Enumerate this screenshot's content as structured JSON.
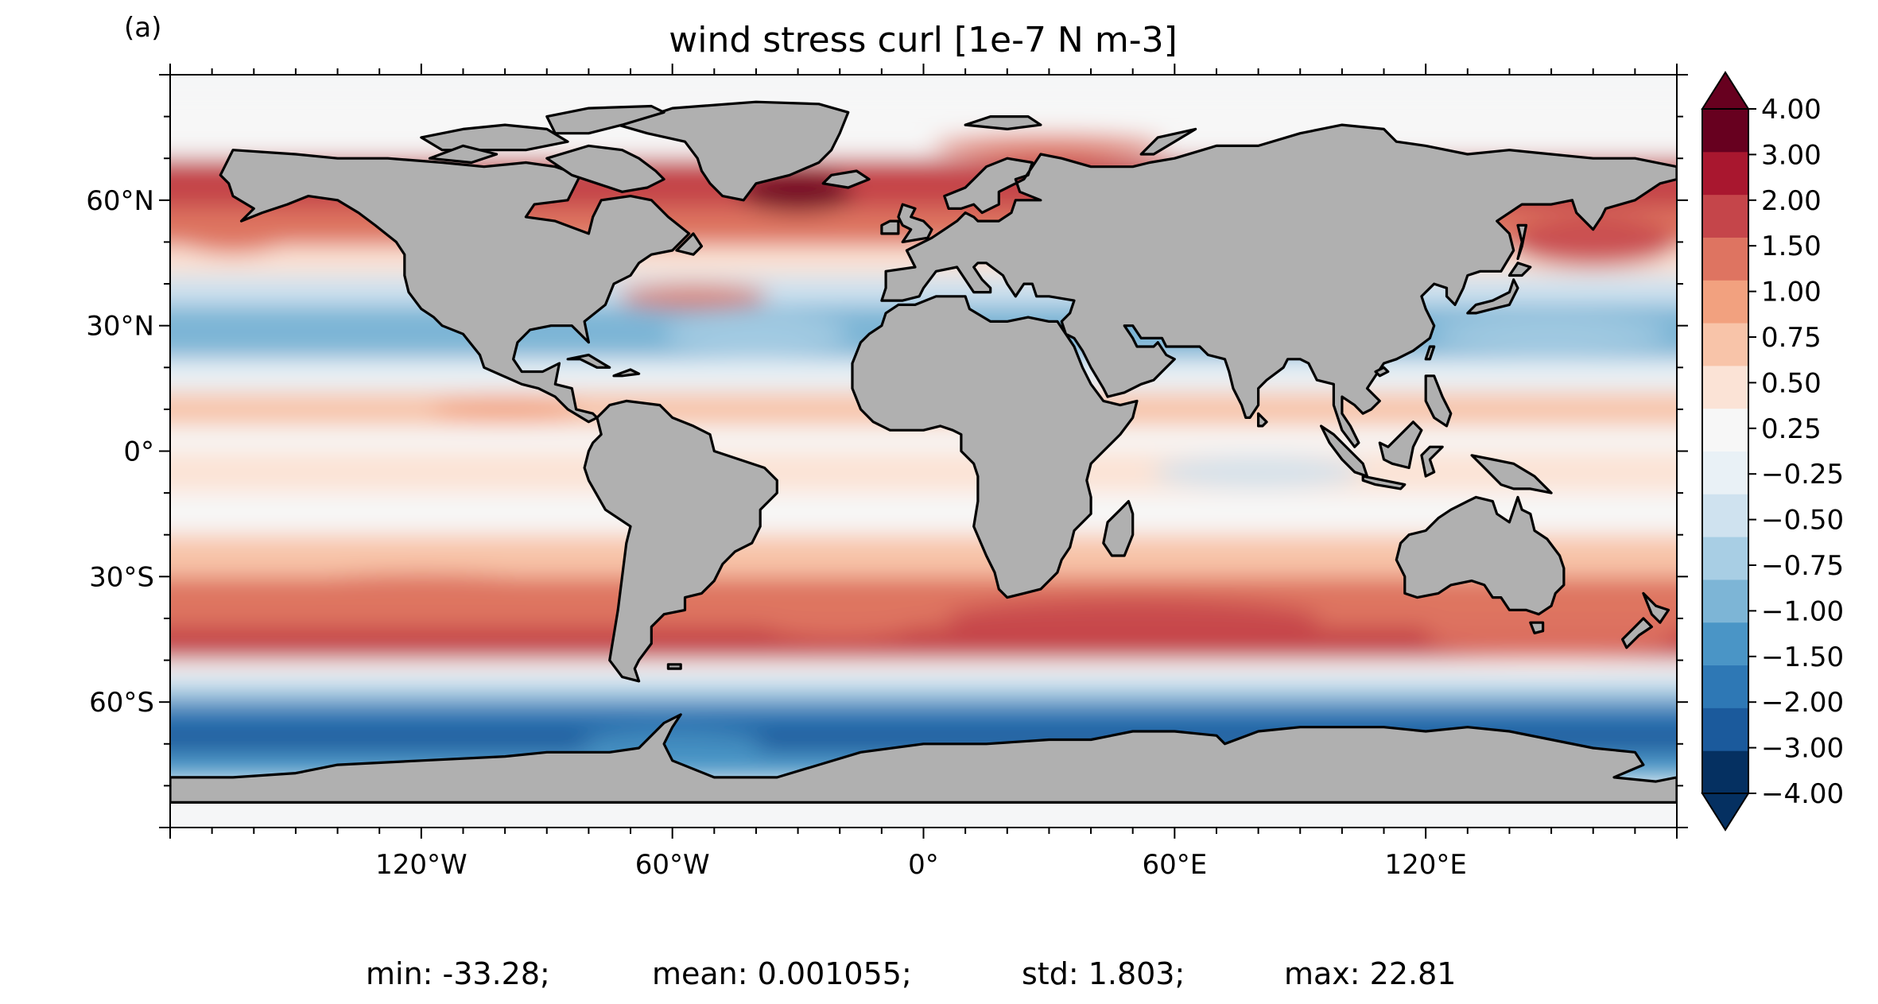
{
  "chart_data": {
    "type": "heatmap",
    "panel_label": "(a)",
    "title": "wind stress curl [1e-7 N m-3]",
    "x_ticks": [
      "120°W",
      "60°W",
      "0°",
      "60°E",
      "120°E"
    ],
    "x_tick_values": [
      -120,
      -60,
      0,
      60,
      120
    ],
    "y_ticks": [
      "60°N",
      "30°N",
      "0°",
      "30°S",
      "60°S"
    ],
    "y_tick_values": [
      60,
      30,
      0,
      -30,
      -60
    ],
    "xlim": [
      -180,
      180
    ],
    "ylim": [
      -90,
      90
    ],
    "land_color": "#b0b0b0",
    "colormap": "RdBu_r",
    "colorbar": {
      "levels": [
        -4.0,
        -3.0,
        -2.0,
        -1.5,
        -1.0,
        -0.75,
        -0.5,
        -0.25,
        0.25,
        0.5,
        0.75,
        1.0,
        1.5,
        2.0,
        3.0,
        4.0
      ],
      "labels": [
        "−4.00",
        "−3.00",
        "−2.00",
        "−1.50",
        "−1.00",
        "−0.75",
        "−0.50",
        "−0.25",
        "0.25",
        "0.50",
        "0.75",
        "1.00",
        "1.50",
        "2.00",
        "3.00",
        "4.00"
      ],
      "colors": [
        "#053061",
        "#1b5a9c",
        "#2e78b5",
        "#4a95c6",
        "#7db5d6",
        "#a8cee4",
        "#cfe2ef",
        "#e9f1f6",
        "#f7f7f7",
        "#fbe3d6",
        "#f8c4a9",
        "#f2a17f",
        "#de7461",
        "#c5454a",
        "#a9172f",
        "#67001f"
      ],
      "extend": "both"
    },
    "stats": [
      {
        "label": "min:",
        "value": "-33.28;"
      },
      {
        "label": "mean:",
        "value": "0.001055;"
      },
      {
        "label": "std:",
        "value": "1.803;"
      },
      {
        "label": "max:",
        "value": "22.81"
      }
    ]
  }
}
